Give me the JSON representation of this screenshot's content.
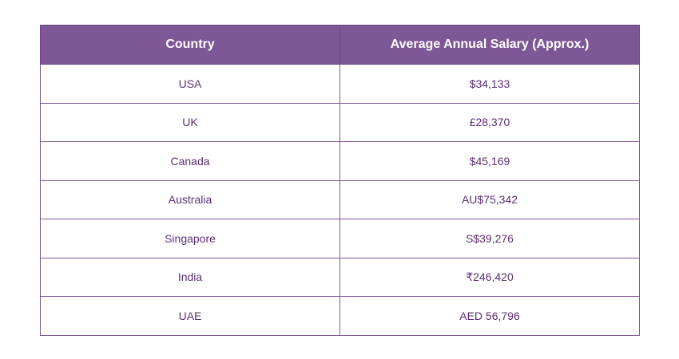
{
  "table": {
    "headers": [
      "Country",
      "Average Annual Salary (Approx.)"
    ],
    "rows": [
      [
        "USA",
        "$34,133"
      ],
      [
        "UK",
        "£28,370"
      ],
      [
        "Canada",
        "$45,169"
      ],
      [
        "Australia",
        "AU$75,342"
      ],
      [
        "Singapore",
        "S$39,276"
      ],
      [
        "India",
        "₹246,420"
      ],
      [
        "UAE",
        "AED 56,796"
      ]
    ]
  },
  "colors": {
    "header_bg": "#7e5796",
    "header_text": "#ffffff",
    "cell_text": "#5b2f73",
    "border": "#7e5796"
  }
}
